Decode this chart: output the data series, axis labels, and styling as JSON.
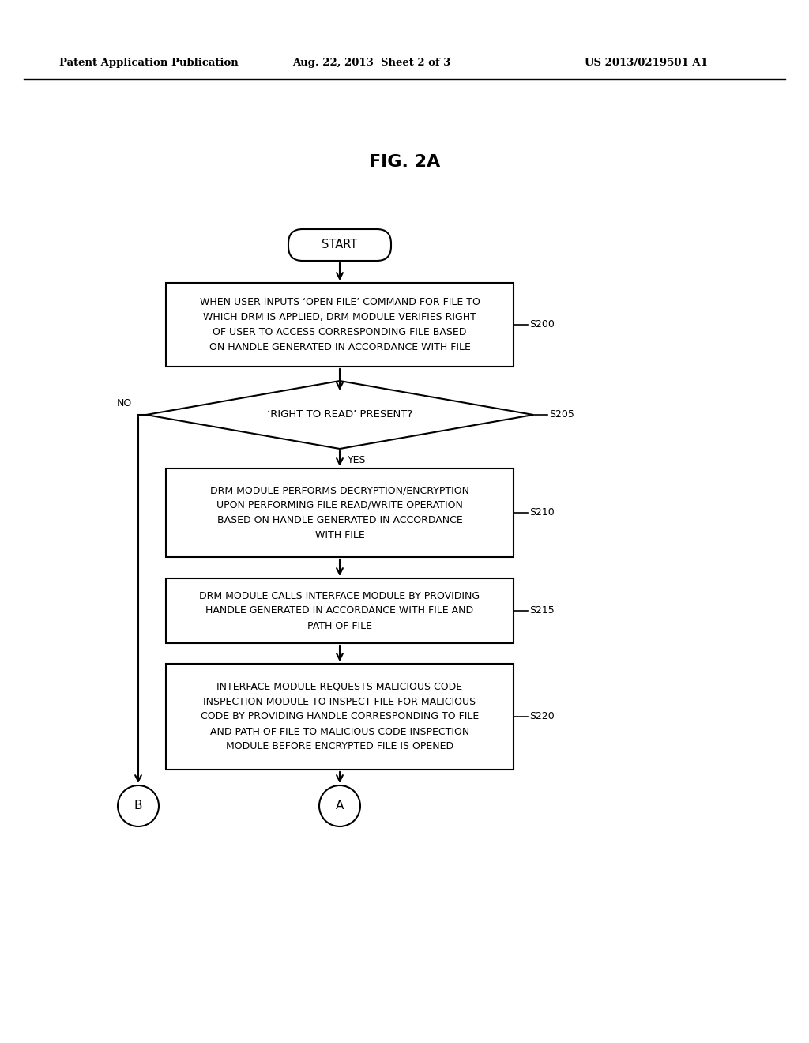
{
  "header_left": "Patent Application Publication",
  "header_mid": "Aug. 22, 2013  Sheet 2 of 3",
  "header_right": "US 2013/0219501 A1",
  "fig_label": "FIG. 2A",
  "start_label": "START",
  "box200_text": "WHEN USER INPUTS ‘OPEN FILE’ COMMAND FOR FILE TO\nWHICH DRM IS APPLIED, DRM MODULE VERIFIES RIGHT\nOF USER TO ACCESS CORRESPONDING FILE BASED\nON HANDLE GENERATED IN ACCORDANCE WITH FILE",
  "box200_label": "S200",
  "diamond205_text": "‘RIGHT TO READ’ PRESENT?",
  "diamond205_label": "S205",
  "diamond205_no": "NO",
  "diamond205_yes": "YES",
  "box210_text": "DRM MODULE PERFORMS DECRYPTION/ENCRYPTION\nUPON PERFORMING FILE READ/WRITE OPERATION\nBASED ON HANDLE GENERATED IN ACCORDANCE\nWITH FILE",
  "box210_label": "S210",
  "box215_text": "DRM MODULE CALLS INTERFACE MODULE BY PROVIDING\nHANDLE GENERATED IN ACCORDANCE WITH FILE AND\nPATH OF FILE",
  "box215_label": "S215",
  "box220_text": "INTERFACE MODULE REQUESTS MALICIOUS CODE\nINSPECTION MODULE TO INSPECT FILE FOR MALICIOUS\nCODE BY PROVIDING HANDLE CORRESPONDING TO FILE\nAND PATH OF FILE TO MALICIOUS CODE INSPECTION\nMODULE BEFORE ENCRYPTED FILE IS OPENED",
  "box220_label": "S220",
  "circle_a": "A",
  "circle_b": "B",
  "bg_color": "#ffffff",
  "line_color": "#000000",
  "text_color": "#000000"
}
